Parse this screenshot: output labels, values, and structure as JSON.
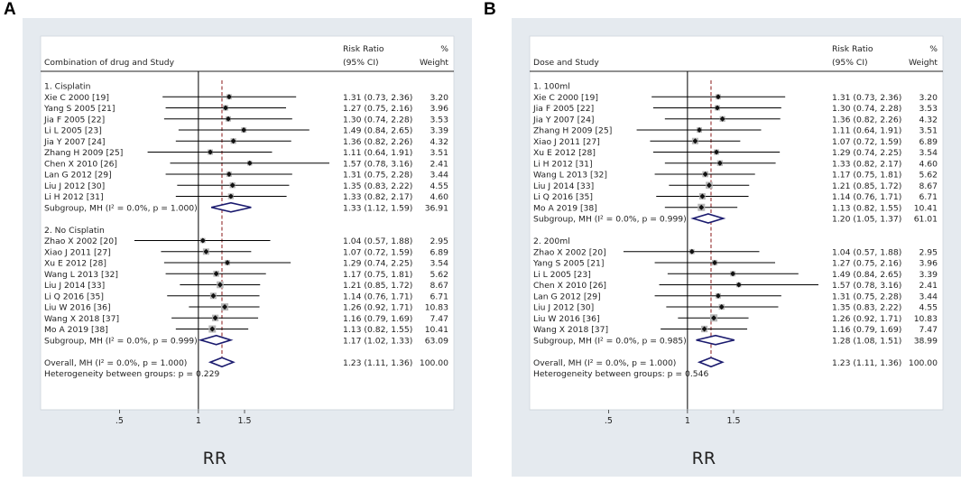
{
  "panels": [
    {
      "letter": "A",
      "header": {
        "study_col": "Combination of drug and Study",
        "rr_col_line1": "Risk Ratio",
        "rr_col_line2": "(95% CI)",
        "wt_col_line1": "%",
        "wt_col_line2": "Weight"
      },
      "rows": [
        {
          "kind": "group",
          "label": "1. Cisplatin"
        },
        {
          "kind": "study",
          "label": "Xie C 2000 [19]",
          "rr": 1.31,
          "lo": 0.73,
          "hi": 2.36,
          "ci": "1.31 (0.73, 2.36)",
          "weight": "3.20"
        },
        {
          "kind": "study",
          "label": "Yang S 2005 [21]",
          "rr": 1.27,
          "lo": 0.75,
          "hi": 2.16,
          "ci": "1.27 (0.75, 2.16)",
          "weight": "3.96"
        },
        {
          "kind": "study",
          "label": "Jia F 2005 [22]",
          "rr": 1.3,
          "lo": 0.74,
          "hi": 2.28,
          "ci": "1.30 (0.74, 2.28)",
          "weight": "3.53"
        },
        {
          "kind": "study",
          "label": "Li L 2005 [23]",
          "rr": 1.49,
          "lo": 0.84,
          "hi": 2.65,
          "ci": "1.49 (0.84, 2.65)",
          "weight": "3.39"
        },
        {
          "kind": "study",
          "label": "Jia Y 2007 [24]",
          "rr": 1.36,
          "lo": 0.82,
          "hi": 2.26,
          "ci": "1.36 (0.82, 2.26)",
          "weight": "4.32"
        },
        {
          "kind": "study",
          "label": "Zhang H 2009 [25]",
          "rr": 1.11,
          "lo": 0.64,
          "hi": 1.91,
          "ci": "1.11 (0.64, 1.91)",
          "weight": "3.51"
        },
        {
          "kind": "study",
          "label": "Chen X 2010 [26]",
          "rr": 1.57,
          "lo": 0.78,
          "hi": 3.16,
          "ci": "1.57 (0.78, 3.16)",
          "weight": "2.41"
        },
        {
          "kind": "study",
          "label": "Lan G 2012 [29]",
          "rr": 1.31,
          "lo": 0.75,
          "hi": 2.28,
          "ci": "1.31 (0.75, 2.28)",
          "weight": "3.44"
        },
        {
          "kind": "study",
          "label": "Liu J 2012 [30]",
          "rr": 1.35,
          "lo": 0.83,
          "hi": 2.22,
          "ci": "1.35 (0.83, 2.22)",
          "weight": "4.55"
        },
        {
          "kind": "study",
          "label": "Li H 2012 [31]",
          "rr": 1.33,
          "lo": 0.82,
          "hi": 2.17,
          "ci": "1.33 (0.82, 2.17)",
          "weight": "4.60"
        },
        {
          "kind": "subgroup",
          "label": "Subgroup, MH (I² = 0.0%, p = 1.000)",
          "rr": 1.33,
          "lo": 1.12,
          "hi": 1.59,
          "ci": "1.33 (1.12, 1.59)",
          "weight": "36.91"
        },
        {
          "kind": "blank"
        },
        {
          "kind": "group",
          "label": "2. No Cisplatin"
        },
        {
          "kind": "study",
          "label": "Zhao X 2002 [20]",
          "rr": 1.04,
          "lo": 0.57,
          "hi": 1.88,
          "ci": "1.04 (0.57, 1.88)",
          "weight": "2.95"
        },
        {
          "kind": "study",
          "label": "Xiao J 2011 [27]",
          "rr": 1.07,
          "lo": 0.72,
          "hi": 1.59,
          "ci": "1.07 (0.72, 1.59)",
          "weight": "6.89"
        },
        {
          "kind": "study",
          "label": "Xu E 2012 [28]",
          "rr": 1.29,
          "lo": 0.74,
          "hi": 2.25,
          "ci": "1.29 (0.74, 2.25)",
          "weight": "3.54"
        },
        {
          "kind": "study",
          "label": "Wang L 2013 [32]",
          "rr": 1.17,
          "lo": 0.75,
          "hi": 1.81,
          "ci": "1.17 (0.75, 1.81)",
          "weight": "5.62"
        },
        {
          "kind": "study",
          "label": "Liu J 2014 [33]",
          "rr": 1.21,
          "lo": 0.85,
          "hi": 1.72,
          "ci": "1.21 (0.85, 1.72)",
          "weight": "8.67"
        },
        {
          "kind": "study",
          "label": "Li Q 2016 [35]",
          "rr": 1.14,
          "lo": 0.76,
          "hi": 1.71,
          "ci": "1.14 (0.76, 1.71)",
          "weight": "6.71"
        },
        {
          "kind": "study",
          "label": "Liu W 2016 [36]",
          "rr": 1.26,
          "lo": 0.92,
          "hi": 1.71,
          "ci": "1.26 (0.92, 1.71)",
          "weight": "10.83"
        },
        {
          "kind": "study",
          "label": "Wang X 2018 [37]",
          "rr": 1.16,
          "lo": 0.79,
          "hi": 1.69,
          "ci": "1.16 (0.79, 1.69)",
          "weight": "7.47"
        },
        {
          "kind": "study",
          "label": "Mo A 2019 [38]",
          "rr": 1.13,
          "lo": 0.82,
          "hi": 1.55,
          "ci": "1.13 (0.82, 1.55)",
          "weight": "10.41"
        },
        {
          "kind": "subgroup",
          "label": "Subgroup, MH (I² = 0.0%, p = 0.999)",
          "rr": 1.17,
          "lo": 1.02,
          "hi": 1.33,
          "ci": "1.17 (1.02, 1.33)",
          "weight": "63.09"
        },
        {
          "kind": "blank"
        },
        {
          "kind": "overall",
          "label": "Overall, MH (I² = 0.0%, p = 1.000)",
          "rr": 1.23,
          "lo": 1.11,
          "hi": 1.36,
          "ci": "1.23 (1.11, 1.36)",
          "weight": "100.00"
        },
        {
          "kind": "note",
          "label": "Heterogeneity between groups: p = 0.229"
        }
      ],
      "axis": {
        "ticks": [
          0.5,
          1,
          1.5
        ],
        "tick_labels": [
          ".5",
          "1",
          "1.5"
        ],
        "xlim": [
          0.25,
          3.16
        ],
        "label": "RR",
        "null_value": 1,
        "overall_rr": 1.23
      }
    },
    {
      "letter": "B",
      "header": {
        "study_col": "Dose and Study",
        "rr_col_line1": "Risk Ratio",
        "rr_col_line2": "(95% CI)",
        "wt_col_line1": "%",
        "wt_col_line2": "Weight"
      },
      "rows": [
        {
          "kind": "group",
          "label": "1. 100ml"
        },
        {
          "kind": "study",
          "label": "Xie C 2000 [19]",
          "rr": 1.31,
          "lo": 0.73,
          "hi": 2.36,
          "ci": "1.31 (0.73, 2.36)",
          "weight": "3.20"
        },
        {
          "kind": "study",
          "label": "Jia F 2005 [22]",
          "rr": 1.3,
          "lo": 0.74,
          "hi": 2.28,
          "ci": "1.30 (0.74, 2.28)",
          "weight": "3.53"
        },
        {
          "kind": "study",
          "label": "Jia Y 2007 [24]",
          "rr": 1.36,
          "lo": 0.82,
          "hi": 2.26,
          "ci": "1.36 (0.82, 2.26)",
          "weight": "4.32"
        },
        {
          "kind": "study",
          "label": "Zhang H 2009 [25]",
          "rr": 1.11,
          "lo": 0.64,
          "hi": 1.91,
          "ci": "1.11 (0.64, 1.91)",
          "weight": "3.51"
        },
        {
          "kind": "study",
          "label": "Xiao J 2011 [27]",
          "rr": 1.07,
          "lo": 0.72,
          "hi": 1.59,
          "ci": "1.07 (0.72, 1.59)",
          "weight": "6.89"
        },
        {
          "kind": "study",
          "label": "Xu E 2012 [28]",
          "rr": 1.29,
          "lo": 0.74,
          "hi": 2.25,
          "ci": "1.29 (0.74, 2.25)",
          "weight": "3.54"
        },
        {
          "kind": "study",
          "label": "Li H 2012 [31]",
          "rr": 1.33,
          "lo": 0.82,
          "hi": 2.17,
          "ci": "1.33 (0.82, 2.17)",
          "weight": "4.60"
        },
        {
          "kind": "study",
          "label": "Wang L 2013 [32]",
          "rr": 1.17,
          "lo": 0.75,
          "hi": 1.81,
          "ci": "1.17 (0.75, 1.81)",
          "weight": "5.62"
        },
        {
          "kind": "study",
          "label": "Liu J 2014 [33]",
          "rr": 1.21,
          "lo": 0.85,
          "hi": 1.72,
          "ci": "1.21 (0.85, 1.72)",
          "weight": "8.67"
        },
        {
          "kind": "study",
          "label": "Li Q 2016 [35]",
          "rr": 1.14,
          "lo": 0.76,
          "hi": 1.71,
          "ci": "1.14 (0.76, 1.71)",
          "weight": "6.71"
        },
        {
          "kind": "study",
          "label": "Mo A 2019 [38]",
          "rr": 1.13,
          "lo": 0.82,
          "hi": 1.55,
          "ci": "1.13 (0.82, 1.55)",
          "weight": "10.41"
        },
        {
          "kind": "subgroup",
          "label": "Subgroup, MH (I² = 0.0%, p = 0.999)",
          "rr": 1.2,
          "lo": 1.05,
          "hi": 1.37,
          "ci": "1.20 (1.05, 1.37)",
          "weight": "61.01"
        },
        {
          "kind": "blank"
        },
        {
          "kind": "group",
          "label": "2. 200ml"
        },
        {
          "kind": "study",
          "label": "Zhao X 2002 [20]",
          "rr": 1.04,
          "lo": 0.57,
          "hi": 1.88,
          "ci": "1.04 (0.57, 1.88)",
          "weight": "2.95"
        },
        {
          "kind": "study",
          "label": "Yang S 2005 [21]",
          "rr": 1.27,
          "lo": 0.75,
          "hi": 2.16,
          "ci": "1.27 (0.75, 2.16)",
          "weight": "3.96"
        },
        {
          "kind": "study",
          "label": "Li L 2005 [23]",
          "rr": 1.49,
          "lo": 0.84,
          "hi": 2.65,
          "ci": "1.49 (0.84, 2.65)",
          "weight": "3.39"
        },
        {
          "kind": "study",
          "label": "Chen X 2010 [26]",
          "rr": 1.57,
          "lo": 0.78,
          "hi": 3.16,
          "ci": "1.57 (0.78, 3.16)",
          "weight": "2.41"
        },
        {
          "kind": "study",
          "label": "Lan G 2012 [29]",
          "rr": 1.31,
          "lo": 0.75,
          "hi": 2.28,
          "ci": "1.31 (0.75, 2.28)",
          "weight": "3.44"
        },
        {
          "kind": "study",
          "label": "Liu J 2012 [30]",
          "rr": 1.35,
          "lo": 0.83,
          "hi": 2.22,
          "ci": "1.35 (0.83, 2.22)",
          "weight": "4.55"
        },
        {
          "kind": "study",
          "label": "Liu W 2016 [36]",
          "rr": 1.26,
          "lo": 0.92,
          "hi": 1.71,
          "ci": "1.26 (0.92, 1.71)",
          "weight": "10.83"
        },
        {
          "kind": "study",
          "label": "Wang X 2018 [37]",
          "rr": 1.16,
          "lo": 0.79,
          "hi": 1.69,
          "ci": "1.16 (0.79, 1.69)",
          "weight": "7.47"
        },
        {
          "kind": "subgroup",
          "label": "Subgroup, MH (I² = 0.0%, p = 0.985)",
          "rr": 1.28,
          "lo": 1.08,
          "hi": 1.51,
          "ci": "1.28 (1.08, 1.51)",
          "weight": "38.99"
        },
        {
          "kind": "blank"
        },
        {
          "kind": "overall",
          "label": "Overall, MH (I² = 0.0%, p = 1.000)",
          "rr": 1.23,
          "lo": 1.11,
          "hi": 1.36,
          "ci": "1.23 (1.11, 1.36)",
          "weight": "100.00"
        },
        {
          "kind": "note",
          "label": "Heterogeneity between groups: p = 0.546"
        }
      ],
      "axis": {
        "ticks": [
          0.5,
          1,
          1.5
        ],
        "tick_labels": [
          ".5",
          "1",
          "1.5"
        ],
        "xlim": [
          0.25,
          3.16
        ],
        "label": "RR",
        "null_value": 1,
        "overall_rr": 1.23
      }
    }
  ],
  "chart_data": [
    {
      "type": "forest",
      "title": "A",
      "xlabel": "RR",
      "xlim": [
        0.25,
        3.16
      ],
      "reference_line": 1,
      "overall_line": 1.23,
      "groups": [
        {
          "name": "1. Cisplatin",
          "subgroup": {
            "rr": 1.33,
            "ci": [
              1.12,
              1.59
            ],
            "weight": 36.91,
            "i2": "0.0%",
            "p": 1.0
          }
        },
        {
          "name": "2. No Cisplatin",
          "subgroup": {
            "rr": 1.17,
            "ci": [
              1.02,
              1.33
            ],
            "weight": 63.09,
            "i2": "0.0%",
            "p": 0.999
          }
        }
      ],
      "overall": {
        "rr": 1.23,
        "ci": [
          1.11,
          1.36
        ],
        "weight": 100.0
      },
      "heterogeneity_between_groups_p": 0.229
    },
    {
      "type": "forest",
      "title": "B",
      "xlabel": "RR",
      "xlim": [
        0.25,
        3.16
      ],
      "reference_line": 1,
      "overall_line": 1.23,
      "groups": [
        {
          "name": "1. 100ml",
          "subgroup": {
            "rr": 1.2,
            "ci": [
              1.05,
              1.37
            ],
            "weight": 61.01,
            "i2": "0.0%",
            "p": 0.999
          }
        },
        {
          "name": "2. 200ml",
          "subgroup": {
            "rr": 1.28,
            "ci": [
              1.08,
              1.51
            ],
            "weight": 38.99,
            "i2": "0.0%",
            "p": 0.985
          }
        }
      ],
      "overall": {
        "rr": 1.23,
        "ci": [
          1.11,
          1.36
        ],
        "weight": 100.0
      },
      "heterogeneity_between_groups_p": 0.546
    }
  ]
}
